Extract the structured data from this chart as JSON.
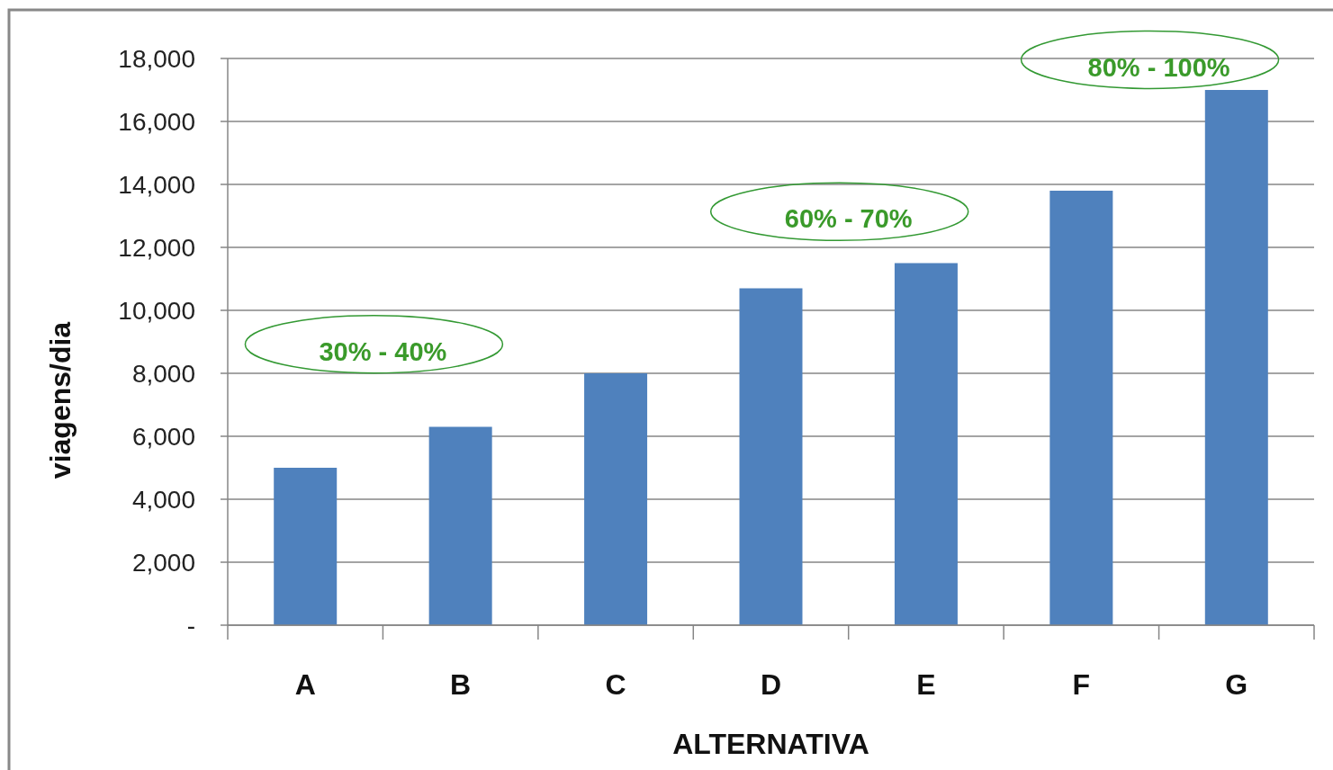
{
  "chart_data": {
    "type": "bar",
    "xlabel": "ALTERNATIVA",
    "ylabel": "viagens/dia",
    "categories": [
      "A",
      "B",
      "C",
      "D",
      "E",
      "F",
      "G"
    ],
    "values": [
      5000,
      6300,
      8000,
      10700,
      11500,
      13800,
      17000
    ],
    "color": "#4f81bd",
    "ylim": [
      0,
      18000
    ],
    "yticks": [
      {
        "value": 0,
        "label": "-"
      },
      {
        "value": 2000,
        "label": "2,000"
      },
      {
        "value": 4000,
        "label": "4,000"
      },
      {
        "value": 6000,
        "label": "6,000"
      },
      {
        "value": 8000,
        "label": "8,000"
      },
      {
        "value": 10000,
        "label": "10,000"
      },
      {
        "value": 12000,
        "label": "12,000"
      },
      {
        "value": 14000,
        "label": "14,000"
      },
      {
        "value": 16000,
        "label": "16,000"
      },
      {
        "value": 18000,
        "label": "18,000"
      }
    ],
    "grid": "y",
    "annotations": [
      "30% - 40%",
      "60% - 70%",
      "80% - 100%"
    ]
  }
}
